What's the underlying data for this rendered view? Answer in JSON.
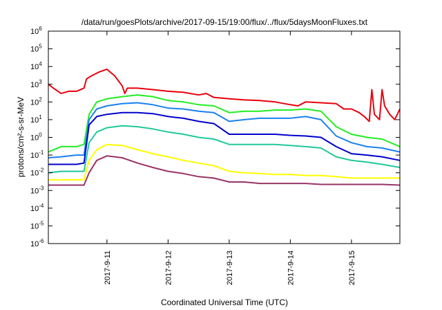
{
  "chart_data": {
    "type": "line",
    "title": "/data/run/goesPlots/archive/2017-09-15/19:00/flux/../flux/5daysMoonFluxes.txt",
    "xlabel": "Coordinated Universal Time (UTC)",
    "ylabel": "protons/cm²-s-sr-MeV",
    "y_scale": "log",
    "ylim": [
      "1e-6",
      "1e6"
    ],
    "y_ticks": [
      {
        "value": "1e-6",
        "base": "10",
        "exp": "-6"
      },
      {
        "value": "1e-5",
        "base": "10",
        "exp": "-5"
      },
      {
        "value": "1e-4",
        "base": "10",
        "exp": "-4"
      },
      {
        "value": "1e-3",
        "base": "10",
        "exp": "-3"
      },
      {
        "value": "1e-2",
        "base": "10",
        "exp": "-2"
      },
      {
        "value": "1e-1",
        "base": "10",
        "exp": "-1"
      },
      {
        "value": "1e0",
        "base": "10",
        "exp": "0"
      },
      {
        "value": "1e1",
        "base": "10",
        "exp": "1"
      },
      {
        "value": "1e2",
        "base": "10",
        "exp": "2"
      },
      {
        "value": "1e3",
        "base": "10",
        "exp": "3"
      },
      {
        "value": "1e4",
        "base": "10",
        "exp": "4"
      },
      {
        "value": "1e5",
        "base": "10",
        "exp": "5"
      },
      {
        "value": "1e6",
        "base": "10",
        "exp": "6"
      }
    ],
    "xlim": [
      "2017-09-10 01:00",
      "2017-09-15 19:00"
    ],
    "x_ticks": [
      "2017-9-11",
      "2017-9-12",
      "2017-9-13",
      "2017-9-14",
      "2017-9-15"
    ],
    "grid": false,
    "series": [
      {
        "color": "#e8000b",
        "x": [
          "2017-09-10 01:00",
          "2017-09-10 03:00",
          "2017-09-10 06:00",
          "2017-09-10 09:00",
          "2017-09-10 12:00",
          "2017-09-10 15:00",
          "2017-09-10 16:00",
          "2017-09-10 18:00",
          "2017-09-10 21:00",
          "2017-09-11 00:00",
          "2017-09-11 03:00",
          "2017-09-11 06:00",
          "2017-09-11 07:00",
          "2017-09-11 08:00",
          "2017-09-11 12:00",
          "2017-09-11 18:00",
          "2017-09-12 00:00",
          "2017-09-12 06:00",
          "2017-09-12 12:00",
          "2017-09-12 15:00",
          "2017-09-12 18:00",
          "2017-09-13 00:00",
          "2017-09-13 06:00",
          "2017-09-13 12:00",
          "2017-09-13 18:00",
          "2017-09-14 00:00",
          "2017-09-14 03:00",
          "2017-09-14 06:00",
          "2017-09-14 12:00",
          "2017-09-14 18:00",
          "2017-09-14 21:00",
          "2017-09-15 00:00",
          "2017-09-15 03:00",
          "2017-09-15 05:00",
          "2017-09-15 07:00",
          "2017-09-15 08:00",
          "2017-09-15 09:00",
          "2017-09-15 11:00",
          "2017-09-15 12:00",
          "2017-09-15 13:00",
          "2017-09-15 15:00",
          "2017-09-15 17:00",
          "2017-09-15 19:00"
        ],
        "y": [
          1000,
          600,
          300,
          400,
          400,
          600,
          2000,
          3000,
          5000,
          7000,
          3000,
          800,
          300,
          600,
          600,
          500,
          400,
          350,
          250,
          300,
          180,
          150,
          130,
          120,
          100,
          70,
          60,
          100,
          90,
          80,
          40,
          40,
          25,
          15,
          8,
          500,
          20,
          10,
          500,
          60,
          20,
          10,
          40
        ]
      },
      {
        "color": "#22ee22",
        "x": [
          "2017-09-10 01:00",
          "2017-09-10 06:00",
          "2017-09-10 12:00",
          "2017-09-10 15:00",
          "2017-09-10 17:00",
          "2017-09-10 20:00",
          "2017-09-11 00:00",
          "2017-09-11 06:00",
          "2017-09-11 12:00",
          "2017-09-11 18:00",
          "2017-09-12 00:00",
          "2017-09-12 06:00",
          "2017-09-12 12:00",
          "2017-09-12 18:00",
          "2017-09-13 00:00",
          "2017-09-13 06:00",
          "2017-09-13 12:00",
          "2017-09-13 18:00",
          "2017-09-14 00:00",
          "2017-09-14 06:00",
          "2017-09-14 12:00",
          "2017-09-14 18:00",
          "2017-09-15 00:00",
          "2017-09-15 06:00",
          "2017-09-15 12:00",
          "2017-09-15 19:00"
        ],
        "y": [
          0.15,
          0.3,
          0.3,
          0.4,
          20,
          100,
          150,
          200,
          250,
          200,
          120,
          100,
          70,
          60,
          25,
          30,
          30,
          35,
          35,
          40,
          30,
          4,
          1.5,
          1,
          0.8,
          0.3
        ]
      },
      {
        "color": "#1a80f0",
        "x": [
          "2017-09-10 01:00",
          "2017-09-10 06:00",
          "2017-09-10 12:00",
          "2017-09-10 15:00",
          "2017-09-10 17:00",
          "2017-09-10 20:00",
          "2017-09-11 00:00",
          "2017-09-11 06:00",
          "2017-09-11 12:00",
          "2017-09-11 18:00",
          "2017-09-12 00:00",
          "2017-09-12 06:00",
          "2017-09-12 12:00",
          "2017-09-12 18:00",
          "2017-09-13 00:00",
          "2017-09-13 06:00",
          "2017-09-13 12:00",
          "2017-09-13 18:00",
          "2017-09-14 00:00",
          "2017-09-14 06:00",
          "2017-09-14 12:00",
          "2017-09-14 18:00",
          "2017-09-15 00:00",
          "2017-09-15 06:00",
          "2017-09-15 12:00",
          "2017-09-15 19:00"
        ],
        "y": [
          0.07,
          0.08,
          0.1,
          0.1,
          10,
          40,
          60,
          80,
          90,
          70,
          45,
          40,
          30,
          25,
          8,
          10,
          12,
          12,
          12,
          15,
          10,
          1.2,
          0.5,
          0.3,
          0.25,
          0.15
        ]
      },
      {
        "color": "#0000cc",
        "x": [
          "2017-09-10 01:00",
          "2017-09-10 06:00",
          "2017-09-10 12:00",
          "2017-09-10 15:00",
          "2017-09-10 17:00",
          "2017-09-10 20:00",
          "2017-09-11 00:00",
          "2017-09-11 06:00",
          "2017-09-11 12:00",
          "2017-09-11 18:00",
          "2017-09-12 00:00",
          "2017-09-12 06:00",
          "2017-09-12 12:00",
          "2017-09-12 18:00",
          "2017-09-13 00:00",
          "2017-09-13 06:00",
          "2017-09-13 12:00",
          "2017-09-13 18:00",
          "2017-09-14 00:00",
          "2017-09-14 06:00",
          "2017-09-14 12:00",
          "2017-09-14 18:00",
          "2017-09-15 00:00",
          "2017-09-15 06:00",
          "2017-09-15 12:00",
          "2017-09-15 19:00"
        ],
        "y": [
          0.03,
          0.03,
          0.03,
          0.035,
          5,
          15,
          20,
          25,
          25,
          22,
          15,
          12,
          8,
          6,
          1.5,
          1.5,
          1.5,
          1.5,
          1.3,
          1.2,
          1,
          0.3,
          0.12,
          0.1,
          0.08,
          0.05
        ]
      },
      {
        "color": "#1fc99a",
        "x": [
          "2017-09-10 01:00",
          "2017-09-10 06:00",
          "2017-09-10 12:00",
          "2017-09-10 15:00",
          "2017-09-10 17:00",
          "2017-09-10 20:00",
          "2017-09-11 00:00",
          "2017-09-11 06:00",
          "2017-09-11 12:00",
          "2017-09-11 18:00",
          "2017-09-12 00:00",
          "2017-09-12 06:00",
          "2017-09-12 12:00",
          "2017-09-12 18:00",
          "2017-09-13 00:00",
          "2017-09-13 06:00",
          "2017-09-13 12:00",
          "2017-09-13 18:00",
          "2017-09-14 00:00",
          "2017-09-14 06:00",
          "2017-09-14 12:00",
          "2017-09-14 18:00",
          "2017-09-15 00:00",
          "2017-09-15 06:00",
          "2017-09-15 12:00",
          "2017-09-15 19:00"
        ],
        "y": [
          0.01,
          0.012,
          0.012,
          0.012,
          0.5,
          2,
          3.5,
          4.5,
          4,
          3,
          2,
          1.5,
          1,
          0.8,
          0.4,
          0.4,
          0.4,
          0.4,
          0.35,
          0.3,
          0.25,
          0.08,
          0.05,
          0.04,
          0.03,
          0.02
        ]
      },
      {
        "color": "#ffff00",
        "x": [
          "2017-09-10 01:00",
          "2017-09-10 06:00",
          "2017-09-10 12:00",
          "2017-09-10 15:00",
          "2017-09-10 17:00",
          "2017-09-10 20:00",
          "2017-09-11 00:00",
          "2017-09-11 06:00",
          "2017-09-11 12:00",
          "2017-09-11 18:00",
          "2017-09-12 00:00",
          "2017-09-12 06:00",
          "2017-09-12 12:00",
          "2017-09-12 18:00",
          "2017-09-13 00:00",
          "2017-09-13 06:00",
          "2017-09-13 12:00",
          "2017-09-13 18:00",
          "2017-09-14 00:00",
          "2017-09-14 06:00",
          "2017-09-14 12:00",
          "2017-09-14 18:00",
          "2017-09-15 00:00",
          "2017-09-15 06:00",
          "2017-09-15 12:00",
          "2017-09-15 19:00"
        ],
        "y": [
          0.004,
          0.004,
          0.004,
          0.004,
          0.05,
          0.2,
          0.4,
          0.35,
          0.2,
          0.12,
          0.08,
          0.05,
          0.035,
          0.025,
          0.012,
          0.01,
          0.009,
          0.008,
          0.008,
          0.007,
          0.007,
          0.006,
          0.005,
          0.005,
          0.005,
          0.005
        ]
      },
      {
        "color": "#993366",
        "x": [
          "2017-09-10 01:00",
          "2017-09-10 06:00",
          "2017-09-10 12:00",
          "2017-09-10 15:00",
          "2017-09-10 17:00",
          "2017-09-10 20:00",
          "2017-09-11 00:00",
          "2017-09-11 06:00",
          "2017-09-11 12:00",
          "2017-09-11 18:00",
          "2017-09-12 00:00",
          "2017-09-12 06:00",
          "2017-09-12 12:00",
          "2017-09-12 18:00",
          "2017-09-13 00:00",
          "2017-09-13 06:00",
          "2017-09-13 12:00",
          "2017-09-13 18:00",
          "2017-09-14 00:00",
          "2017-09-14 06:00",
          "2017-09-14 12:00",
          "2017-09-14 18:00",
          "2017-09-15 00:00",
          "2017-09-15 06:00",
          "2017-09-15 12:00",
          "2017-09-15 19:00"
        ],
        "y": [
          0.002,
          0.002,
          0.002,
          0.002,
          0.01,
          0.05,
          0.09,
          0.07,
          0.035,
          0.02,
          0.012,
          0.009,
          0.006,
          0.005,
          0.003,
          0.003,
          0.0025,
          0.0025,
          0.0025,
          0.0025,
          0.0022,
          0.0022,
          0.0022,
          0.0022,
          0.0022,
          0.002
        ]
      }
    ]
  }
}
